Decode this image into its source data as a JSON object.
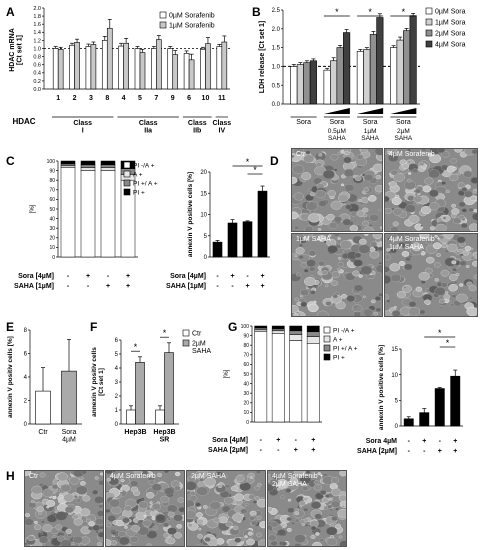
{
  "figure": {
    "panels": {
      "A": "A",
      "B": "B",
      "C": "C",
      "D": "D",
      "E": "E",
      "F": "F",
      "G": "G",
      "H": "H"
    }
  },
  "chart_data": [
    {
      "panel": "A",
      "type": "bar",
      "ylabel": "HDAC mRNA\n[Ct set 1]",
      "ylim": [
        0,
        2.0
      ],
      "yticks": [
        "0.0",
        "0.2",
        "0.4",
        "0.6",
        "0.8",
        "1.0",
        "1.2",
        "1.4",
        "1.6",
        "1.8",
        "2.0"
      ],
      "categories": [
        "1",
        "2",
        "3",
        "8",
        "4",
        "5",
        "7",
        "9",
        "6",
        "10",
        "11"
      ],
      "series": [
        {
          "name": "0µM Sorafenib",
          "color": "#ffffff",
          "values": [
            1.0,
            1.08,
            1.05,
            1.2,
            1.06,
            1.0,
            1.0,
            1.0,
            0.88,
            0.98,
            1.05
          ],
          "errors": [
            0.05,
            0.05,
            0.06,
            0.1,
            0.07,
            0.05,
            0.05,
            0.05,
            0.06,
            0.05,
            0.05
          ]
        },
        {
          "name": "1µM Sorafenib",
          "color": "#c8c8c8",
          "values": [
            0.98,
            1.15,
            1.1,
            1.5,
            1.13,
            0.9,
            1.22,
            0.85,
            0.72,
            1.12,
            1.16
          ],
          "errors": [
            0.05,
            0.08,
            0.06,
            0.22,
            0.12,
            0.08,
            0.1,
            0.1,
            0.14,
            0.15,
            0.15
          ]
        }
      ],
      "dashed_ref": 1.0,
      "xlabel": "HDAC",
      "groups": [
        {
          "label": "Class\nI",
          "count": 4
        },
        {
          "label": "Class\nIIa",
          "count": 4
        },
        {
          "label": "Class\nIIb",
          "count": 2
        },
        {
          "label": "Class\nIV",
          "count": 1
        }
      ]
    },
    {
      "panel": "B",
      "type": "bar",
      "ylabel": "LDH release [Ct set 1]",
      "ylim": [
        0,
        2.5
      ],
      "yticks": [
        "0.0",
        "0.5",
        "1.0",
        "1.5",
        "2.0",
        "2.5"
      ],
      "categories": [
        "Sora",
        "0.5µM SAHA",
        "1µM SAHA",
        "2µM SAHA"
      ],
      "category_labels": [
        "Sora",
        "0.5µM\nSAHA",
        "1µM\nSAHA",
        "2µM\nSAHA"
      ],
      "sub_labels": [
        "Sora",
        "Sora",
        "Sora"
      ],
      "series": [
        {
          "name": "0µM Sora",
          "color": "#ffffff",
          "values": [
            1.0,
            0.9,
            1.4,
            1.5
          ],
          "errors": [
            0.05,
            0.05,
            0.05,
            0.05
          ]
        },
        {
          "name": "1µM Sora",
          "color": "#d0d0d0",
          "values": [
            1.05,
            1.15,
            1.45,
            1.7
          ],
          "errors": [
            0.05,
            0.08,
            0.05,
            0.08
          ]
        },
        {
          "name": "2µM Sora",
          "color": "#909090",
          "values": [
            1.1,
            1.5,
            1.85,
            1.95
          ],
          "errors": [
            0.05,
            0.06,
            0.08,
            0.06
          ]
        },
        {
          "name": "4µM Sora",
          "color": "#404040",
          "values": [
            1.15,
            1.9,
            2.3,
            2.35
          ],
          "errors": [
            0.05,
            0.08,
            0.1,
            0.06
          ]
        }
      ],
      "dashed_ref": 1.0,
      "significance": [
        "*",
        "*",
        "*"
      ]
    },
    {
      "panel": "C-left",
      "type": "bar",
      "stacked": true,
      "ylabel": "[%]",
      "ylim": [
        0,
        100
      ],
      "yticks": [
        "0",
        "10",
        "20",
        "30",
        "40",
        "50",
        "60",
        "70",
        "80",
        "90",
        "100"
      ],
      "row_labels": [
        "Sora [4µM]",
        "SAHA [1µM]"
      ],
      "row_values": [
        [
          "-",
          "+",
          "-",
          "+"
        ],
        [
          "-",
          "-",
          "+",
          "+"
        ]
      ],
      "series": [
        {
          "name": "PI -/A +",
          "color": "#ffffff",
          "values": [
            93,
            90,
            90,
            80
          ]
        },
        {
          "name": "A +",
          "color": "#e6e6e6",
          "values": [
            2,
            3,
            3,
            6
          ]
        },
        {
          "name": "PI +/ A +",
          "color": "#888888",
          "values": [
            2,
            3,
            3,
            6
          ]
        },
        {
          "name": "PI +",
          "color": "#000000",
          "values": [
            3,
            4,
            4,
            8
          ]
        }
      ]
    },
    {
      "panel": "C-right",
      "type": "bar",
      "ylabel": "annexin V positive cells [%]",
      "ylim": [
        0,
        20
      ],
      "yticks": [
        "0",
        "5",
        "10",
        "15",
        "20"
      ],
      "row_labels": [
        "Sora [4µM]",
        "SAHA [1µM]"
      ],
      "row_values": [
        [
          "-",
          "+",
          "-",
          "+"
        ],
        [
          "-",
          "-",
          "+",
          "+"
        ]
      ],
      "values": [
        3.5,
        8.0,
        8.3,
        15.5
      ],
      "errors": [
        0.4,
        0.8,
        0.2,
        1.2
      ],
      "significance": [
        "*",
        "*"
      ]
    },
    {
      "panel": "E",
      "type": "bar",
      "ylabel": "annexin V positiv cells [%]",
      "ylim": [
        0,
        8
      ],
      "yticks": [
        "0",
        "2",
        "4",
        "6",
        "8"
      ],
      "categories": [
        "Ctr",
        "Sora 4µM"
      ],
      "category_labels": [
        "Ctr",
        "Sora\n4µM"
      ],
      "values": [
        2.8,
        4.5
      ],
      "errors": [
        2.0,
        2.7
      ],
      "colors": [
        "#ffffff",
        "#aaaaaa"
      ]
    },
    {
      "panel": "F",
      "type": "bar",
      "ylabel": "annexin V positiv cells\n[Ct set 1]",
      "ylim": [
        0,
        6
      ],
      "yticks": [
        "0",
        "1",
        "2",
        "3",
        "4",
        "5",
        "6"
      ],
      "categories": [
        "Hep3B",
        "Hep3B SR"
      ],
      "category_labels": [
        "Hep3B",
        "Hep3B\nSR"
      ],
      "series": [
        {
          "name": "Ctr",
          "color": "#ffffff",
          "values": [
            1.0,
            1.0
          ],
          "errors": [
            0.3,
            0.3
          ]
        },
        {
          "name": "2µM\nSAHA",
          "color": "#aaaaaa",
          "values": [
            4.4,
            5.1
          ],
          "errors": [
            0.4,
            0.7
          ]
        }
      ],
      "significance": [
        "*",
        "*"
      ]
    },
    {
      "panel": "G-left",
      "type": "bar",
      "stacked": true,
      "ylabel": "[%]",
      "ylim": [
        0,
        100
      ],
      "yticks": [
        "0",
        "10",
        "20",
        "30",
        "40",
        "50",
        "60",
        "70",
        "80",
        "90",
        "100"
      ],
      "row_labels": [
        "Sora [4µM]",
        "SAHA [2µM]"
      ],
      "row_values": [
        [
          "-",
          "+",
          "-",
          "+"
        ],
        [
          "-",
          "-",
          "+",
          "+"
        ]
      ],
      "series": [
        {
          "name": "PI -/A +",
          "color": "#ffffff",
          "values": [
            94,
            92,
            85,
            82
          ]
        },
        {
          "name": "A +",
          "color": "#e6e6e6",
          "values": [
            2,
            3,
            6,
            7
          ]
        },
        {
          "name": "PI +/ A +",
          "color": "#888888",
          "values": [
            2,
            2,
            4,
            5
          ]
        },
        {
          "name": "PI +",
          "color": "#000000",
          "values": [
            2,
            3,
            5,
            6
          ]
        }
      ]
    },
    {
      "panel": "G-right",
      "type": "bar",
      "ylabel": "annexin V positive cells [%]",
      "ylim": [
        0,
        15
      ],
      "yticks": [
        "0",
        "5",
        "10",
        "15"
      ],
      "row_labels": [
        "Sora 4µM",
        "SAHA [2µM]"
      ],
      "row_values": [
        [
          "-",
          "+",
          "-",
          "+"
        ],
        [
          "-",
          "-",
          "+",
          "+"
        ]
      ],
      "values": [
        1.4,
        2.6,
        7.3,
        9.7
      ],
      "errors": [
        0.4,
        0.8,
        0.2,
        1.2
      ],
      "significance": [
        "*",
        "*"
      ]
    }
  ],
  "images": {
    "D": [
      "Ctr",
      "4µM Sorafenib",
      "1µM SAHA",
      "4µM Sorafenib +\n1µM SAHA"
    ],
    "H": [
      "Ctr",
      "4µM Sorafenib",
      "2µM SAHA",
      "4µM Sorafenib +\n2µM SAHA"
    ]
  }
}
